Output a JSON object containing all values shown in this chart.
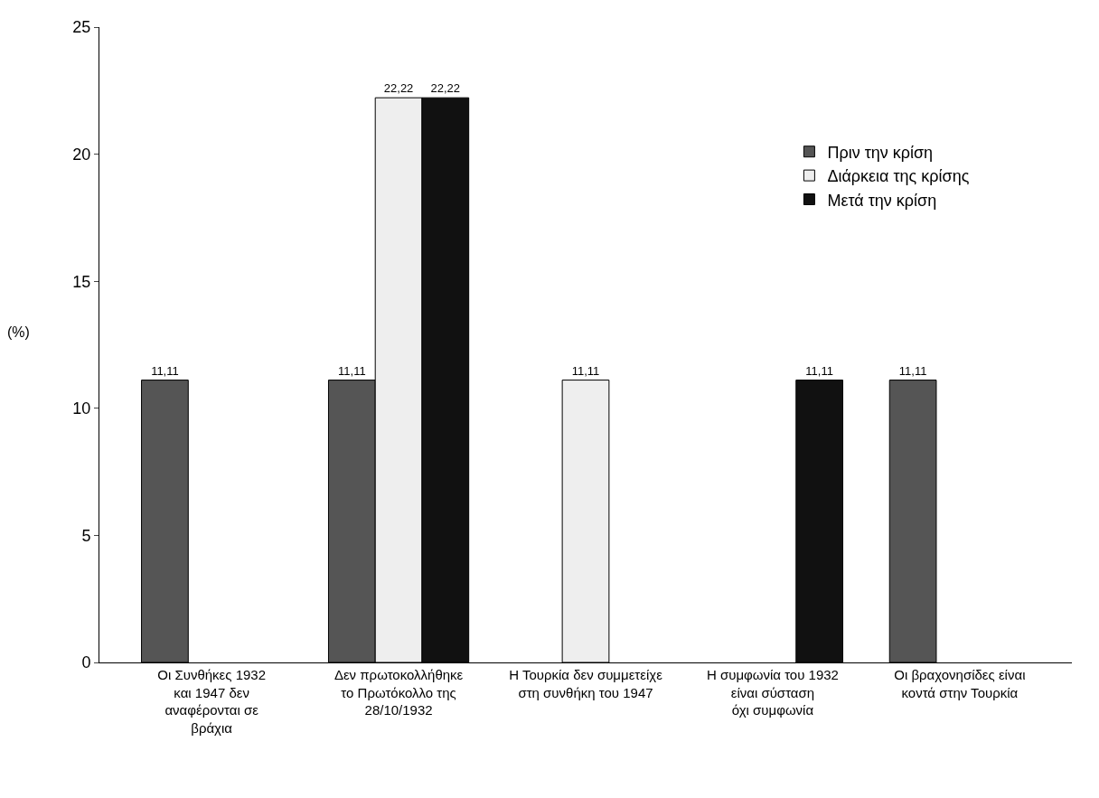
{
  "chart_data": {
    "type": "bar",
    "ylabel": "(%)",
    "categories": [
      "Οι Συνθήκες 1932\nκαι 1947 δεν\nαναφέρονται σε\nβράχια",
      "Δεν πρωτοκολλήθηκε\nτο Πρωτόκολλο της\n28/10/1932",
      "Η Τουρκία δεν συμμετείχε\nστη συνθήκη του 1947",
      "Η συμφωνία του 1932\nείναι σύσταση\nόχι συμφωνία",
      "Οι βραχονησίδες είναι\nκοντά στην Τουρκία"
    ],
    "series": [
      {
        "name": "Πριν την κρίση",
        "color": "#555555",
        "values": [
          11.11,
          11.11,
          null,
          null,
          11.11
        ],
        "value_labels": [
          "11,11",
          "11,11",
          null,
          null,
          "11,11"
        ]
      },
      {
        "name": "Διάρκεια της κρίσης",
        "color": "#eeeeee",
        "values": [
          null,
          22.22,
          11.11,
          null,
          null
        ],
        "value_labels": [
          null,
          "22,22",
          "11,11",
          null,
          null
        ]
      },
      {
        "name": "Μετά την κρίση",
        "color": "#111111",
        "values": [
          null,
          22.22,
          null,
          11.11,
          null
        ],
        "value_labels": [
          null,
          "22,22",
          null,
          "11,11",
          null
        ]
      }
    ],
    "ylim": [
      0,
      25
    ],
    "yticks": [
      0,
      5,
      10,
      15,
      20,
      25
    ],
    "legend": "top right"
  }
}
